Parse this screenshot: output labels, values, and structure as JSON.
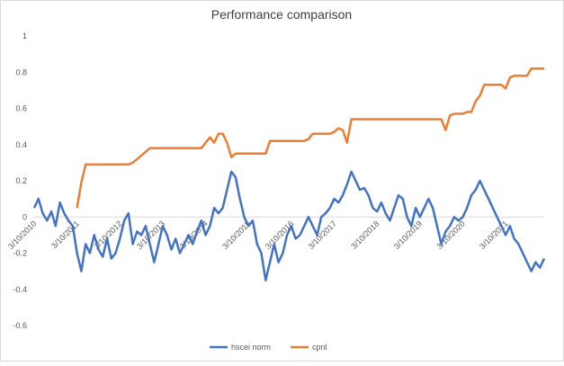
{
  "chart_data": {
    "type": "line",
    "title": "Performance comparison",
    "categories": [
      "3/10/2010",
      null,
      null,
      null,
      null,
      null,
      null,
      null,
      null,
      null,
      "3/10/2011",
      null,
      null,
      null,
      null,
      null,
      null,
      null,
      null,
      null,
      "3/10/2012",
      null,
      null,
      null,
      null,
      null,
      null,
      null,
      null,
      null,
      "3/10/2013",
      null,
      null,
      null,
      null,
      null,
      null,
      null,
      null,
      null,
      "3/10/2014",
      null,
      null,
      null,
      null,
      null,
      null,
      null,
      null,
      null,
      "3/10/2015",
      null,
      null,
      null,
      null,
      null,
      null,
      null,
      null,
      null,
      "3/10/2016",
      null,
      null,
      null,
      null,
      null,
      null,
      null,
      null,
      null,
      "3/10/2017",
      null,
      null,
      null,
      null,
      null,
      null,
      null,
      null,
      null,
      "3/10/2018",
      null,
      null,
      null,
      null,
      null,
      null,
      null,
      null,
      null,
      "3/10/2019",
      null,
      null,
      null,
      null,
      null,
      null,
      null,
      null,
      null,
      "3/10/2020",
      null,
      null,
      null,
      null,
      null,
      null,
      null,
      null,
      null,
      "3/10/2021",
      null,
      null,
      null,
      null,
      null,
      null,
      null,
      null,
      null
    ],
    "series": [
      {
        "name": "hscei norm",
        "color": "#4472c4",
        "values": [
          0.05,
          0.1,
          0.02,
          -0.02,
          0.03,
          -0.05,
          0.08,
          0.02,
          -0.02,
          -0.05,
          -0.2,
          -0.3,
          -0.15,
          -0.2,
          -0.1,
          -0.18,
          -0.22,
          -0.12,
          -0.23,
          -0.2,
          -0.12,
          -0.02,
          0.02,
          -0.15,
          -0.08,
          -0.1,
          -0.05,
          -0.15,
          -0.25,
          -0.15,
          -0.05,
          -0.1,
          -0.18,
          -0.12,
          -0.2,
          -0.15,
          -0.1,
          -0.15,
          -0.08,
          -0.02,
          -0.1,
          -0.05,
          0.05,
          0.02,
          0.05,
          0.15,
          0.25,
          0.22,
          0.1,
          0.0,
          -0.05,
          -0.02,
          -0.15,
          -0.2,
          -0.35,
          -0.25,
          -0.15,
          -0.25,
          -0.2,
          -0.1,
          -0.05,
          -0.12,
          -0.1,
          -0.05,
          0.0,
          -0.05,
          -0.1,
          0.0,
          0.02,
          0.05,
          0.1,
          0.08,
          0.12,
          0.18,
          0.25,
          0.2,
          0.15,
          0.16,
          0.12,
          0.05,
          0.03,
          0.08,
          0.02,
          -0.02,
          0.05,
          0.12,
          0.1,
          0.0,
          -0.05,
          0.05,
          0.0,
          0.05,
          0.1,
          0.05,
          -0.05,
          -0.15,
          -0.08,
          -0.05,
          0.0,
          -0.02,
          0.0,
          0.05,
          0.12,
          0.15,
          0.2,
          0.15,
          0.1,
          0.05,
          0.0,
          -0.05,
          -0.1,
          -0.05,
          -0.12,
          -0.15,
          -0.2,
          -0.25,
          -0.3,
          -0.25,
          -0.28,
          -0.23
        ]
      },
      {
        "name": "cpnl",
        "color": "#ed7d31",
        "values": [
          null,
          null,
          null,
          null,
          null,
          null,
          null,
          null,
          null,
          null,
          0.05,
          0.19,
          0.29,
          0.29,
          0.29,
          0.29,
          0.29,
          0.29,
          0.29,
          0.29,
          0.29,
          0.29,
          0.29,
          0.3,
          0.32,
          0.34,
          0.36,
          0.38,
          0.38,
          0.38,
          0.38,
          0.38,
          0.38,
          0.38,
          0.38,
          0.38,
          0.38,
          0.38,
          0.38,
          0.38,
          0.41,
          0.44,
          0.41,
          0.46,
          0.46,
          0.41,
          0.33,
          0.35,
          0.35,
          0.35,
          0.35,
          0.35,
          0.35,
          0.35,
          0.35,
          0.42,
          0.42,
          0.42,
          0.42,
          0.42,
          0.42,
          0.42,
          0.42,
          0.42,
          0.43,
          0.46,
          0.46,
          0.46,
          0.46,
          0.46,
          0.47,
          0.49,
          0.48,
          0.41,
          0.54,
          0.54,
          0.54,
          0.54,
          0.54,
          0.54,
          0.54,
          0.54,
          0.54,
          0.54,
          0.54,
          0.54,
          0.54,
          0.54,
          0.54,
          0.54,
          0.54,
          0.54,
          0.54,
          0.54,
          0.54,
          0.54,
          0.48,
          0.56,
          0.57,
          0.57,
          0.57,
          0.58,
          0.58,
          0.64,
          0.67,
          0.73,
          0.73,
          0.73,
          0.73,
          0.73,
          0.71,
          0.77,
          0.78,
          0.78,
          0.78,
          0.78,
          0.82,
          0.82,
          0.82,
          0.82
        ]
      }
    ],
    "ylim": [
      -0.6,
      1
    ],
    "yticks": [
      -0.6,
      -0.4,
      -0.2,
      0,
      0.2,
      0.4,
      0.6,
      0.8,
      1
    ],
    "grid": false,
    "legend": "bottom"
  }
}
